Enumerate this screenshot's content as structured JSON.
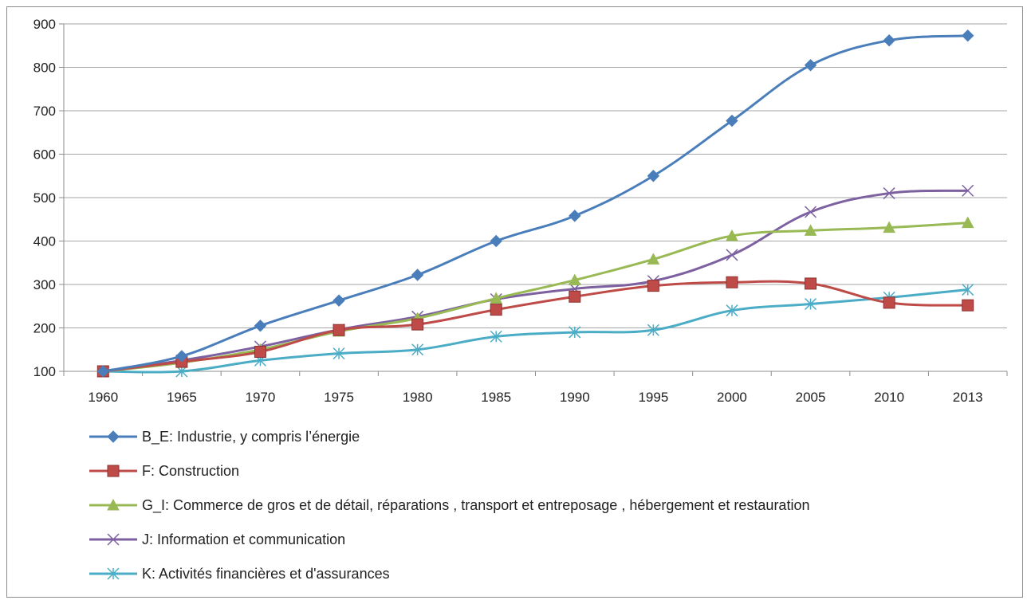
{
  "chart_data": {
    "type": "line",
    "title": "",
    "xlabel": "",
    "ylabel": "",
    "categories": [
      "1960",
      "1965",
      "1970",
      "1975",
      "1980",
      "1985",
      "1990",
      "1995",
      "2000",
      "2005",
      "2010",
      "2013"
    ],
    "ylim": [
      100,
      900
    ],
    "yticks": [
      100,
      200,
      300,
      400,
      500,
      600,
      700,
      800,
      900
    ],
    "grid": true,
    "legend_position": "bottom",
    "series": [
      {
        "name": "B_E: Industrie, y compris l’énergie",
        "color": "#4a7ebb",
        "marker": "diamond",
        "values": [
          100,
          135,
          205,
          263,
          322,
          400,
          458,
          550,
          677,
          805,
          862,
          873
        ]
      },
      {
        "name": "F: Construction",
        "color": "#be4b48",
        "marker": "square",
        "values": [
          100,
          122,
          145,
          195,
          208,
          242,
          272,
          297,
          305,
          302,
          258,
          252
        ]
      },
      {
        "name": "G_I: Commerce de gros et de détail, réparations , transport et entreposage , hébergement et restauration",
        "color": "#98b954",
        "marker": "triangle",
        "values": [
          100,
          120,
          150,
          192,
          222,
          268,
          310,
          358,
          412,
          424,
          431,
          442
        ]
      },
      {
        "name": "J: Information et communication",
        "color": "#7d60a0",
        "marker": "x",
        "values": [
          100,
          125,
          157,
          196,
          226,
          266,
          290,
          308,
          368,
          467,
          510,
          516
        ]
      },
      {
        "name": "K: Activités financières et d'assurances",
        "color": "#4bacc6",
        "marker": "star",
        "values": [
          100,
          100,
          125,
          141,
          150,
          180,
          190,
          195,
          240,
          255,
          270,
          288
        ]
      }
    ]
  }
}
